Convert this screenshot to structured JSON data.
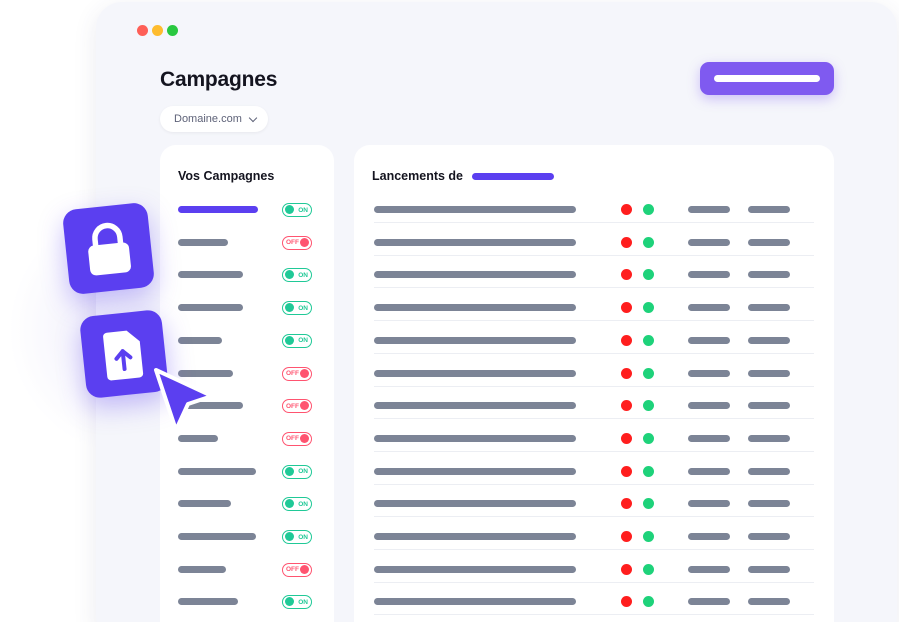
{
  "header": {
    "title": "Campagnes",
    "domain_select": "Domaine.com"
  },
  "campaigns_panel": {
    "title": "Vos Campagnes",
    "on_label": "ON",
    "off_label": "OFF",
    "items": [
      {
        "state": "ON",
        "active": true
      },
      {
        "state": "OFF"
      },
      {
        "state": "ON"
      },
      {
        "state": "ON"
      },
      {
        "state": "ON"
      },
      {
        "state": "OFF"
      },
      {
        "state": "OFF"
      },
      {
        "state": "OFF"
      },
      {
        "state": "ON"
      },
      {
        "state": "ON"
      },
      {
        "state": "ON"
      },
      {
        "state": "OFF"
      },
      {
        "state": "ON"
      }
    ]
  },
  "launches_panel": {
    "title": "Lancements de",
    "row_count": 13
  },
  "icons": [
    "lock-icon",
    "file-upload-icon",
    "cursor-arrow-icon"
  ],
  "colors": {
    "accent": "#5b3ff0",
    "cta": "#7f5af0",
    "on": "#20c997",
    "off": "#ff5470",
    "status_red": "#ff1e1e",
    "status_green": "#1ed27a"
  }
}
